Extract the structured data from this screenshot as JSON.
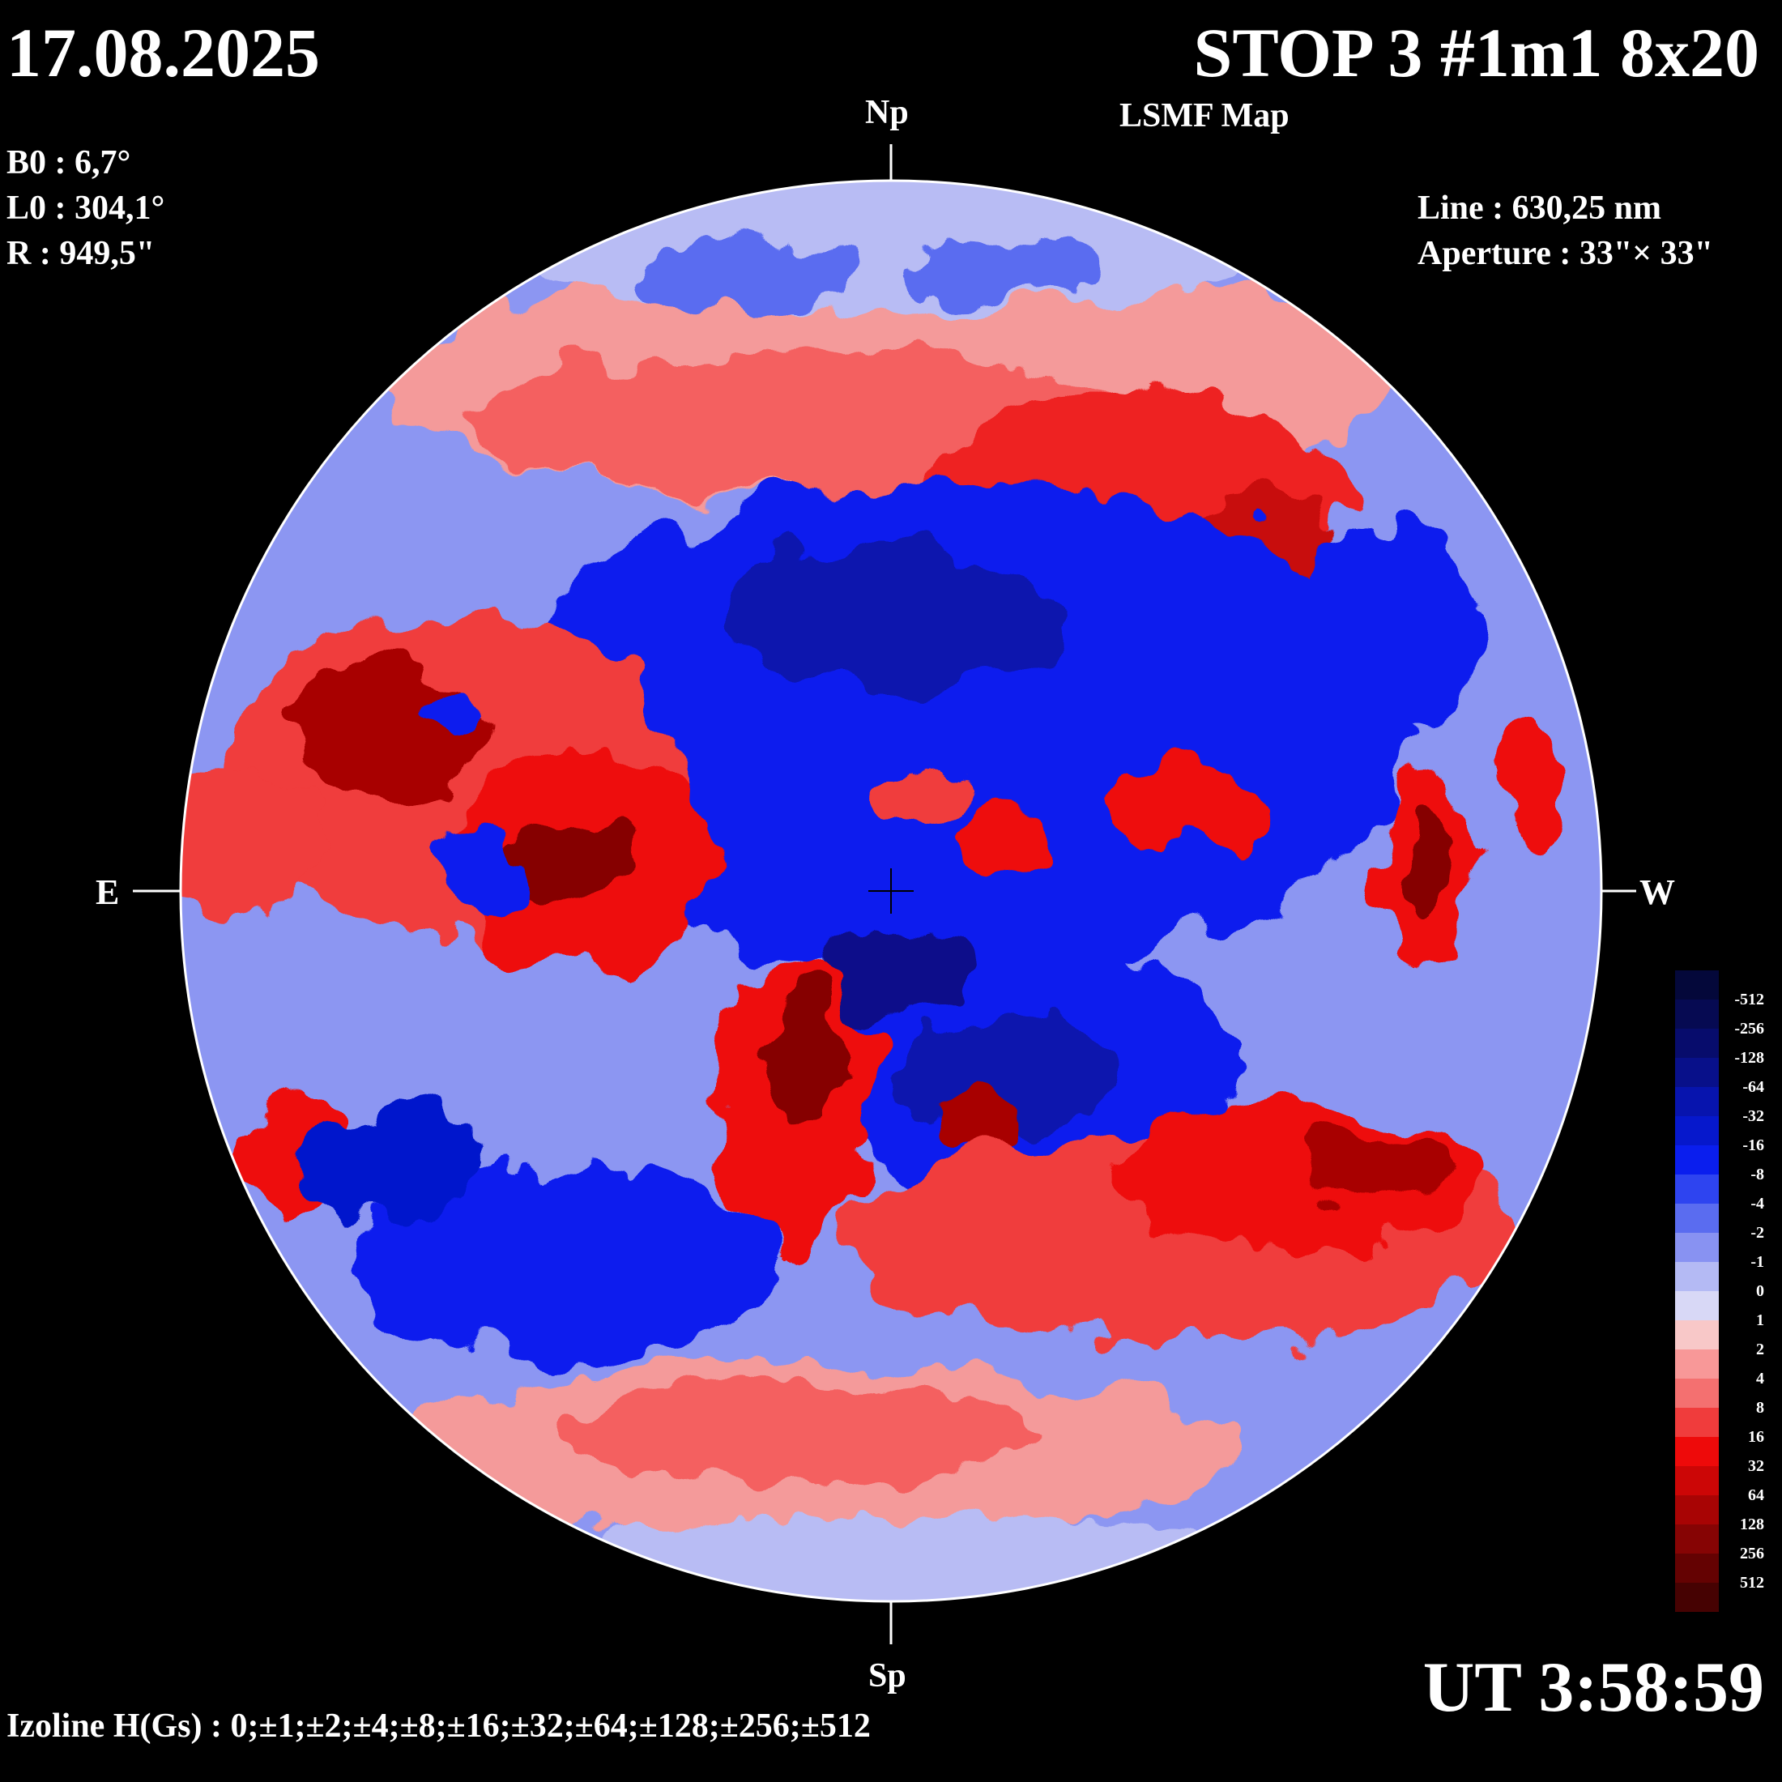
{
  "header": {
    "date": "17.08.2025",
    "title": "STOP 3 #1m1 8x20",
    "subtitle": "LSMF  Map",
    "ut": "UT 3:58:59"
  },
  "parameters": {
    "b0": "B0 : 6,7°",
    "l0": "L0 : 304,1°",
    "r": "R  : 949,5\"",
    "line": "Line :  630,25 nm",
    "aperture": "Aperture : 33\"× 33\""
  },
  "orientation": {
    "north": "Np",
    "south": "Sp",
    "east": "E",
    "west": "W"
  },
  "izoline": "Izoline H(Gs) : 0;±1;±2;±4;±8;±16;±32;±64;±128;±256;±512",
  "colors": {
    "background": "#000000",
    "text": "#ffffff",
    "boundary": "#ffffff"
  },
  "color_scale": [
    {
      "label": "",
      "color": "#04083a"
    },
    {
      "label": "-512",
      "color": "#060a52"
    },
    {
      "label": "-256",
      "color": "#070c6c"
    },
    {
      "label": "-128",
      "color": "#08108a"
    },
    {
      "label": "-64",
      "color": "#0714ae"
    },
    {
      "label": "-32",
      "color": "#0618cc"
    },
    {
      "label": "-16",
      "color": "#0a1eee"
    },
    {
      "label": "-8",
      "color": "#2e44f0"
    },
    {
      "label": "-4",
      "color": "#5a6cf0"
    },
    {
      "label": "-2",
      "color": "#8892f2"
    },
    {
      "label": "-1",
      "color": "#b4baf4"
    },
    {
      "label": "0",
      "color": "#d8d8f6"
    },
    {
      "label": "1",
      "color": "#f8c8c8"
    },
    {
      "label": "2",
      "color": "#f89898"
    },
    {
      "label": "4",
      "color": "#f47070"
    },
    {
      "label": "8",
      "color": "#f03c3c"
    },
    {
      "label": "16",
      "color": "#ee0a0a"
    },
    {
      "label": "32",
      "color": "#cc0606"
    },
    {
      "label": "64",
      "color": "#a80404"
    },
    {
      "label": "128",
      "color": "#860404"
    },
    {
      "label": "256",
      "color": "#640202"
    },
    {
      "label": "512",
      "color": "#460202"
    }
  ]
}
